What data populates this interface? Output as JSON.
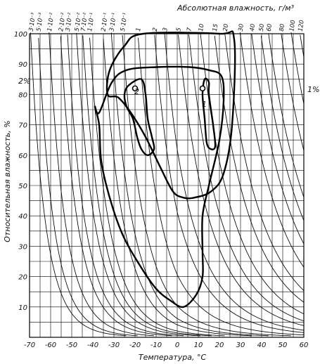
{
  "chart_data": {
    "type": "line",
    "title": "Абсолютная влажность, г/м³",
    "xlabel": "Температура, °C",
    "ylabel": "Относительная влажность, %",
    "xlim": [
      -70,
      60
    ],
    "ylim": [
      0,
      100
    ],
    "x_ticks": [
      "-70",
      "-60",
      "-50",
      "-40",
      "-30",
      "-20",
      "-10",
      "0",
      "10",
      "20",
      "30",
      "40",
      "50",
      "60"
    ],
    "y_ticks": [
      "10",
      "20",
      "30",
      "40",
      "50",
      "60",
      "70",
      "80",
      "90",
      "100"
    ],
    "grid": true,
    "absolute_humidity_isolines": {
      "labels": [
        "3·10⁻³",
        "5·10⁻³",
        "1·10⁻²",
        "2·10⁻²",
        "3·10⁻²",
        "5·10⁻²",
        "7·10⁻²",
        "1·10⁻¹",
        "2·10⁻¹",
        "3·10⁻¹",
        "5·10⁻¹",
        "1",
        "2",
        "3",
        "5",
        "7",
        "10",
        "15",
        "20",
        "30",
        "40",
        "50",
        "60",
        "80",
        "100",
        "120"
      ],
      "values": [
        0.003,
        0.005,
        0.01,
        0.02,
        0.03,
        0.05,
        0.07,
        0.1,
        0.2,
        0.3,
        0.5,
        1,
        2,
        3,
        5,
        7,
        10,
        15,
        20,
        30,
        40,
        50,
        60,
        80,
        100,
        120
      ]
    },
    "annotations": {
      "left_pct": "2%",
      "right_pct": "1%",
      "region_1": "1",
      "region_2": "2"
    },
    "regions": [
      {
        "id": "outer-top",
        "points": [
          [
            -33,
            80
          ],
          [
            -32,
            88
          ],
          [
            -25,
            96
          ],
          [
            -16,
            100
          ],
          [
            20,
            100
          ],
          [
            27,
            98
          ],
          [
            26,
            70
          ],
          [
            22,
            54
          ],
          [
            16,
            48
          ],
          [
            8,
            46
          ],
          [
            3,
            46
          ],
          [
            -2,
            48
          ],
          [
            -8,
            56
          ],
          [
            -15,
            66
          ],
          [
            -22,
            74
          ],
          [
            -28,
            79
          ]
        ]
      },
      {
        "id": "outer-large",
        "points": [
          [
            -37,
            74
          ],
          [
            -31,
            84
          ],
          [
            -24,
            88
          ],
          [
            -10,
            89
          ],
          [
            6,
            89
          ],
          [
            15,
            88
          ],
          [
            21,
            86
          ],
          [
            22,
            78
          ],
          [
            20,
            65
          ],
          [
            15,
            50
          ],
          [
            12,
            40
          ],
          [
            12,
            28
          ],
          [
            12,
            20
          ],
          [
            9,
            14
          ],
          [
            3,
            10
          ],
          [
            -3,
            12
          ],
          [
            -10,
            16
          ],
          [
            -18,
            24
          ],
          [
            -26,
            34
          ],
          [
            -32,
            46
          ],
          [
            -36,
            58
          ],
          [
            -37,
            70
          ],
          [
            -39,
            76
          ]
        ]
      },
      {
        "id": "region-2",
        "points": [
          [
            -23,
            83
          ],
          [
            -17,
            85
          ],
          [
            -15,
            80
          ],
          [
            -14,
            72
          ],
          [
            -12,
            66
          ],
          [
            -11,
            62
          ],
          [
            -14,
            60
          ],
          [
            -17,
            62
          ],
          [
            -19,
            66
          ],
          [
            -21,
            72
          ],
          [
            -24,
            76
          ],
          [
            -25,
            80
          ]
        ]
      },
      {
        "id": "region-1",
        "points": [
          [
            13,
            85
          ],
          [
            15,
            84
          ],
          [
            15,
            80
          ],
          [
            17,
            70
          ],
          [
            18,
            63
          ],
          [
            16,
            62
          ],
          [
            14,
            64
          ],
          [
            13,
            72
          ],
          [
            12,
            80
          ]
        ]
      }
    ]
  }
}
